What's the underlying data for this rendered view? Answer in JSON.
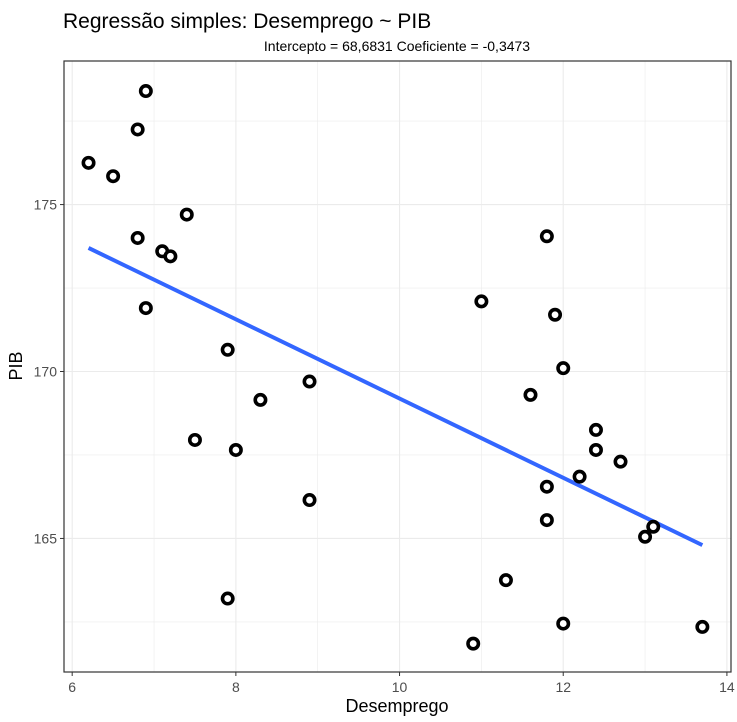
{
  "chart_data": {
    "type": "scatter",
    "title": "Regressão simples: Desemprego ~ PIB",
    "subtitle": "Intercepto = 68,6831   Coeficiente = -0,3473",
    "xlabel": "Desemprego",
    "ylabel": "PIB",
    "xlim": [
      5.9,
      14.05
    ],
    "ylim": [
      161.0,
      179.3
    ],
    "x_ticks": [
      6,
      8,
      10,
      12,
      14
    ],
    "x_tick_labels": [
      "6",
      "8",
      "10",
      "12",
      "14"
    ],
    "y_ticks": [
      165,
      170,
      175
    ],
    "y_tick_labels": [
      "165",
      "170",
      "175"
    ],
    "grid": true,
    "legend": "none",
    "points": [
      {
        "x": 6.2,
        "y": 176.25
      },
      {
        "x": 6.5,
        "y": 175.85
      },
      {
        "x": 6.8,
        "y": 177.25
      },
      {
        "x": 6.9,
        "y": 178.4
      },
      {
        "x": 6.8,
        "y": 174.0
      },
      {
        "x": 7.1,
        "y": 173.6
      },
      {
        "x": 7.2,
        "y": 173.45
      },
      {
        "x": 6.9,
        "y": 171.9
      },
      {
        "x": 7.4,
        "y": 174.7
      },
      {
        "x": 7.5,
        "y": 167.95
      },
      {
        "x": 7.9,
        "y": 170.65
      },
      {
        "x": 7.9,
        "y": 163.2
      },
      {
        "x": 8.0,
        "y": 167.65
      },
      {
        "x": 8.3,
        "y": 169.15
      },
      {
        "x": 8.9,
        "y": 169.7
      },
      {
        "x": 8.9,
        "y": 166.15
      },
      {
        "x": 10.9,
        "y": 161.85
      },
      {
        "x": 11.0,
        "y": 172.1
      },
      {
        "x": 11.3,
        "y": 163.75
      },
      {
        "x": 11.6,
        "y": 169.3
      },
      {
        "x": 11.8,
        "y": 174.05
      },
      {
        "x": 11.9,
        "y": 171.7
      },
      {
        "x": 11.8,
        "y": 166.55
      },
      {
        "x": 11.8,
        "y": 165.55
      },
      {
        "x": 12.0,
        "y": 170.1
      },
      {
        "x": 12.0,
        "y": 162.45
      },
      {
        "x": 12.2,
        "y": 166.85
      },
      {
        "x": 12.4,
        "y": 168.25
      },
      {
        "x": 12.4,
        "y": 167.65
      },
      {
        "x": 12.7,
        "y": 167.3
      },
      {
        "x": 13.0,
        "y": 165.05
      },
      {
        "x": 13.1,
        "y": 165.35
      },
      {
        "x": 13.7,
        "y": 162.35
      }
    ],
    "fit_line": {
      "x": [
        6.2,
        13.7
      ],
      "y": [
        173.7,
        164.8
      ]
    },
    "colors": {
      "points": "#000000",
      "fit_line": "#3366FF",
      "grid": "#ebebeb",
      "panel_border": "#333333",
      "tick_text": "#4d4d4d"
    }
  }
}
